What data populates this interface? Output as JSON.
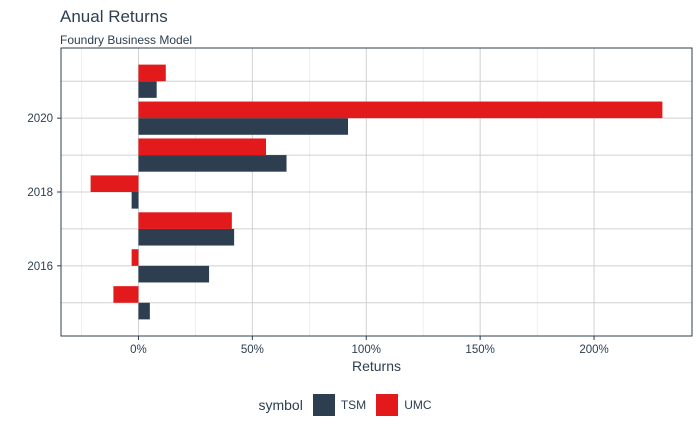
{
  "chart_data": {
    "type": "bar",
    "orientation": "horizontal",
    "title": "Anual Returns",
    "subtitle": "Foundry Business Model",
    "xlabel": "Returns",
    "ylabel": "",
    "xlim": [
      -0.34,
      2.43
    ],
    "ylim": [
      2014.1,
      2021.9
    ],
    "x_ticks": [
      0,
      0.5,
      1.0,
      1.5,
      2.0
    ],
    "x_tick_labels": [
      "0%",
      "50%",
      "100%",
      "150%",
      "200%"
    ],
    "y_ticks": [
      2016,
      2018,
      2020
    ],
    "y_tick_labels": [
      "2016",
      "2018",
      "2020"
    ],
    "categories": [
      2015,
      2016,
      2017,
      2018,
      2019,
      2020,
      2021
    ],
    "grid": true,
    "legend_position": "bottom",
    "legend_title": "symbol",
    "series": [
      {
        "name": "TSM",
        "color": "#2c3e50",
        "values": [
          0.05,
          0.31,
          0.42,
          -0.03,
          0.65,
          0.92,
          0.08
        ]
      },
      {
        "name": "UMC",
        "color": "#e31a1c",
        "values": [
          -0.11,
          -0.03,
          0.41,
          -0.21,
          0.56,
          2.3,
          0.12
        ]
      }
    ]
  }
}
